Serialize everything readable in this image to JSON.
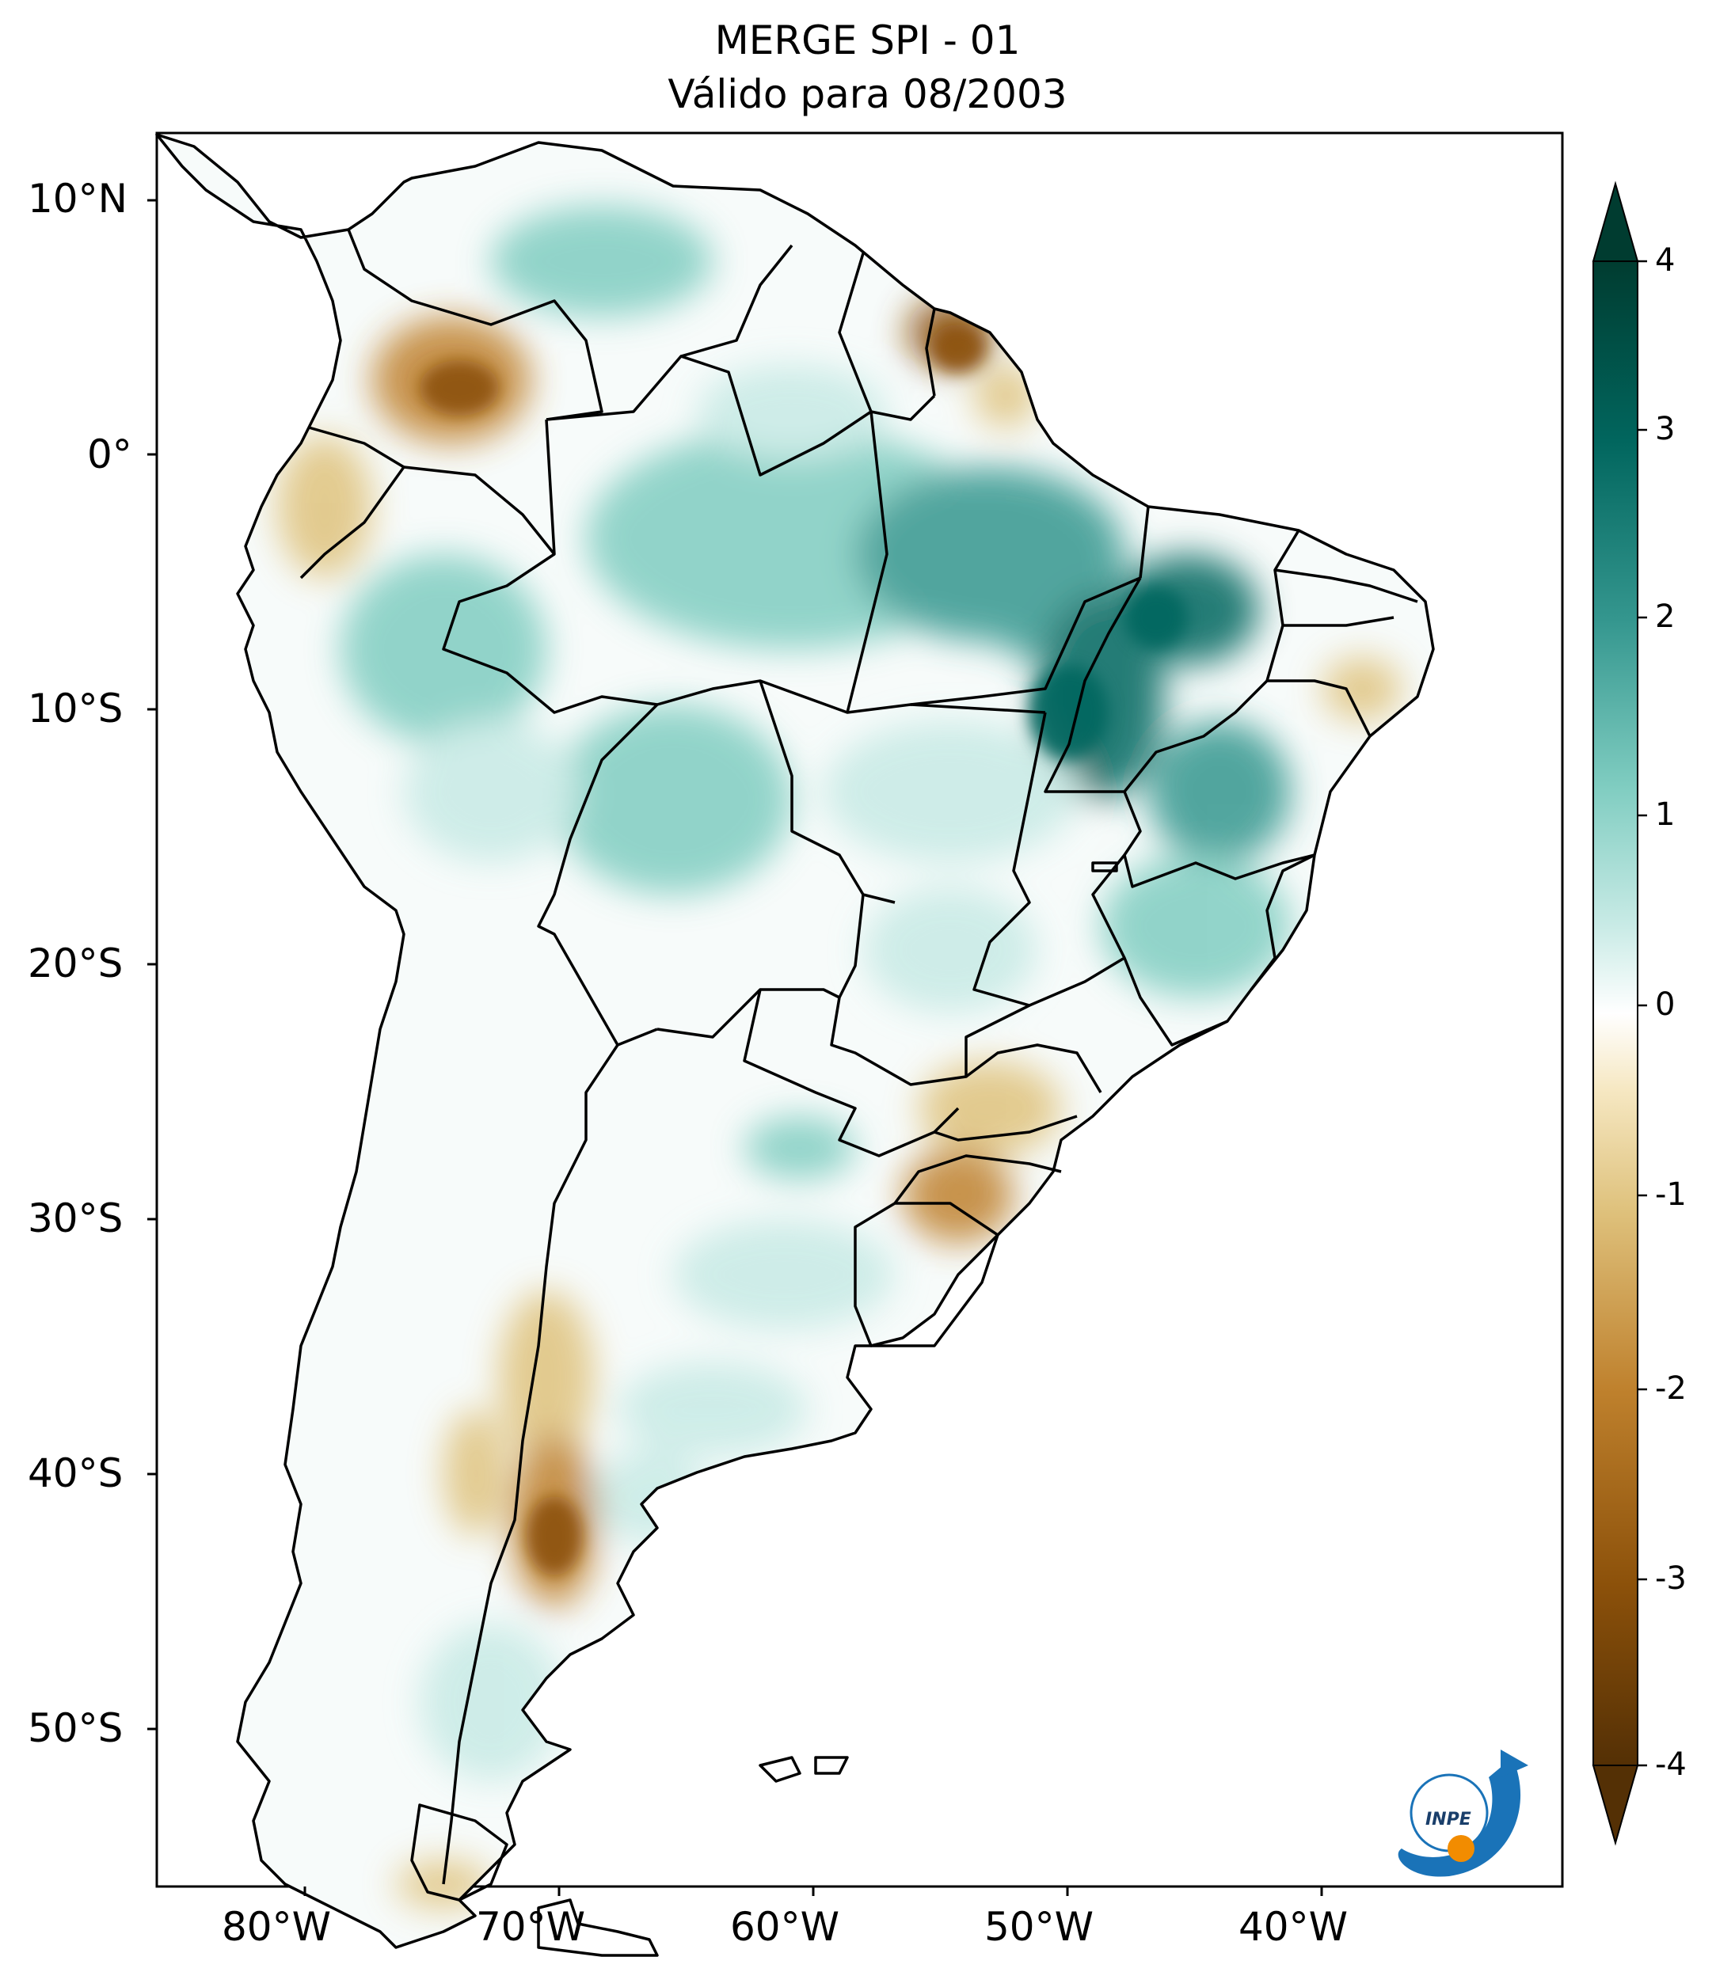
{
  "title": {
    "line1": "MERGE   SPI - 01",
    "line2": "Válido para 08/2003"
  },
  "map": {
    "region": "South America",
    "lat_labels": [
      "10°N",
      "0°",
      "10°S",
      "20°S",
      "30°S",
      "40°S",
      "50°S"
    ],
    "lon_labels": [
      "80°W",
      "70°W",
      "60°W",
      "50°W",
      "40°W"
    ]
  },
  "colorbar": {
    "labels": [
      "4",
      "3",
      "2",
      "1",
      "0",
      "-1",
      "-2",
      "-3",
      "-4"
    ],
    "min": -4,
    "max": 4,
    "colors": [
      "#543005",
      "#8c510a",
      "#bf812d",
      "#dfc27d",
      "#f6e8c3",
      "#ffffff",
      "#c7eae5",
      "#80cdc1",
      "#35978f",
      "#01665e",
      "#003c30"
    ]
  },
  "logo": {
    "text": "INPE",
    "colors": [
      "#1a73b8",
      "#f28c00"
    ]
  },
  "colors": {
    "wet": "#35978f",
    "wet_dark": "#01665e",
    "dry": "#bf812d",
    "dry_dark": "#8c510a",
    "outline": "#000000"
  }
}
